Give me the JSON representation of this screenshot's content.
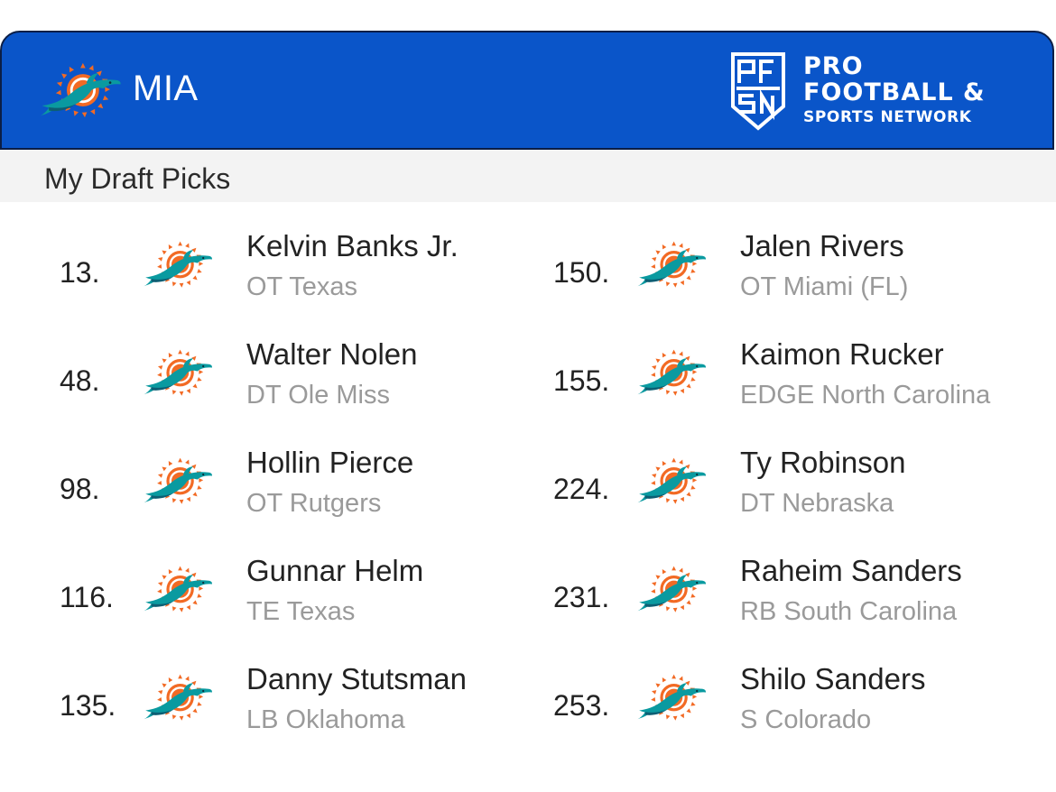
{
  "header": {
    "team_abbr": "MIA",
    "team_logo_icon": "dolphins-logo-icon",
    "brand": {
      "badge_text": "PFSN",
      "line1": "PRO",
      "line2": "FOOTBALL &",
      "line3": "SPORTS NETWORK"
    }
  },
  "section": {
    "title": "My Draft Picks"
  },
  "picks": [
    {
      "number": "13.",
      "name": "Kelvin Banks Jr.",
      "detail": "OT Texas"
    },
    {
      "number": "48.",
      "name": "Walter Nolen",
      "detail": "DT Ole Miss"
    },
    {
      "number": "98.",
      "name": "Hollin Pierce",
      "detail": "OT Rutgers"
    },
    {
      "number": "116.",
      "name": "Gunnar Helm",
      "detail": "TE Texas"
    },
    {
      "number": "135.",
      "name": "Danny Stutsman",
      "detail": "LB Oklahoma"
    },
    {
      "number": "150.",
      "name": "Jalen Rivers",
      "detail": "OT Miami (FL)"
    },
    {
      "number": "155.",
      "name": "Kaimon Rucker",
      "detail": "EDGE North Carolina"
    },
    {
      "number": "224.",
      "name": "Ty Robinson",
      "detail": "DT Nebraska"
    },
    {
      "number": "231.",
      "name": "Raheim Sanders",
      "detail": "RB South Carolina"
    },
    {
      "number": "253.",
      "name": "Shilo Sanders",
      "detail": "S Colorado"
    }
  ],
  "colors": {
    "header_blue": "#0a55c9",
    "aqua": "#0a9aa0",
    "orange": "#f26a24"
  }
}
